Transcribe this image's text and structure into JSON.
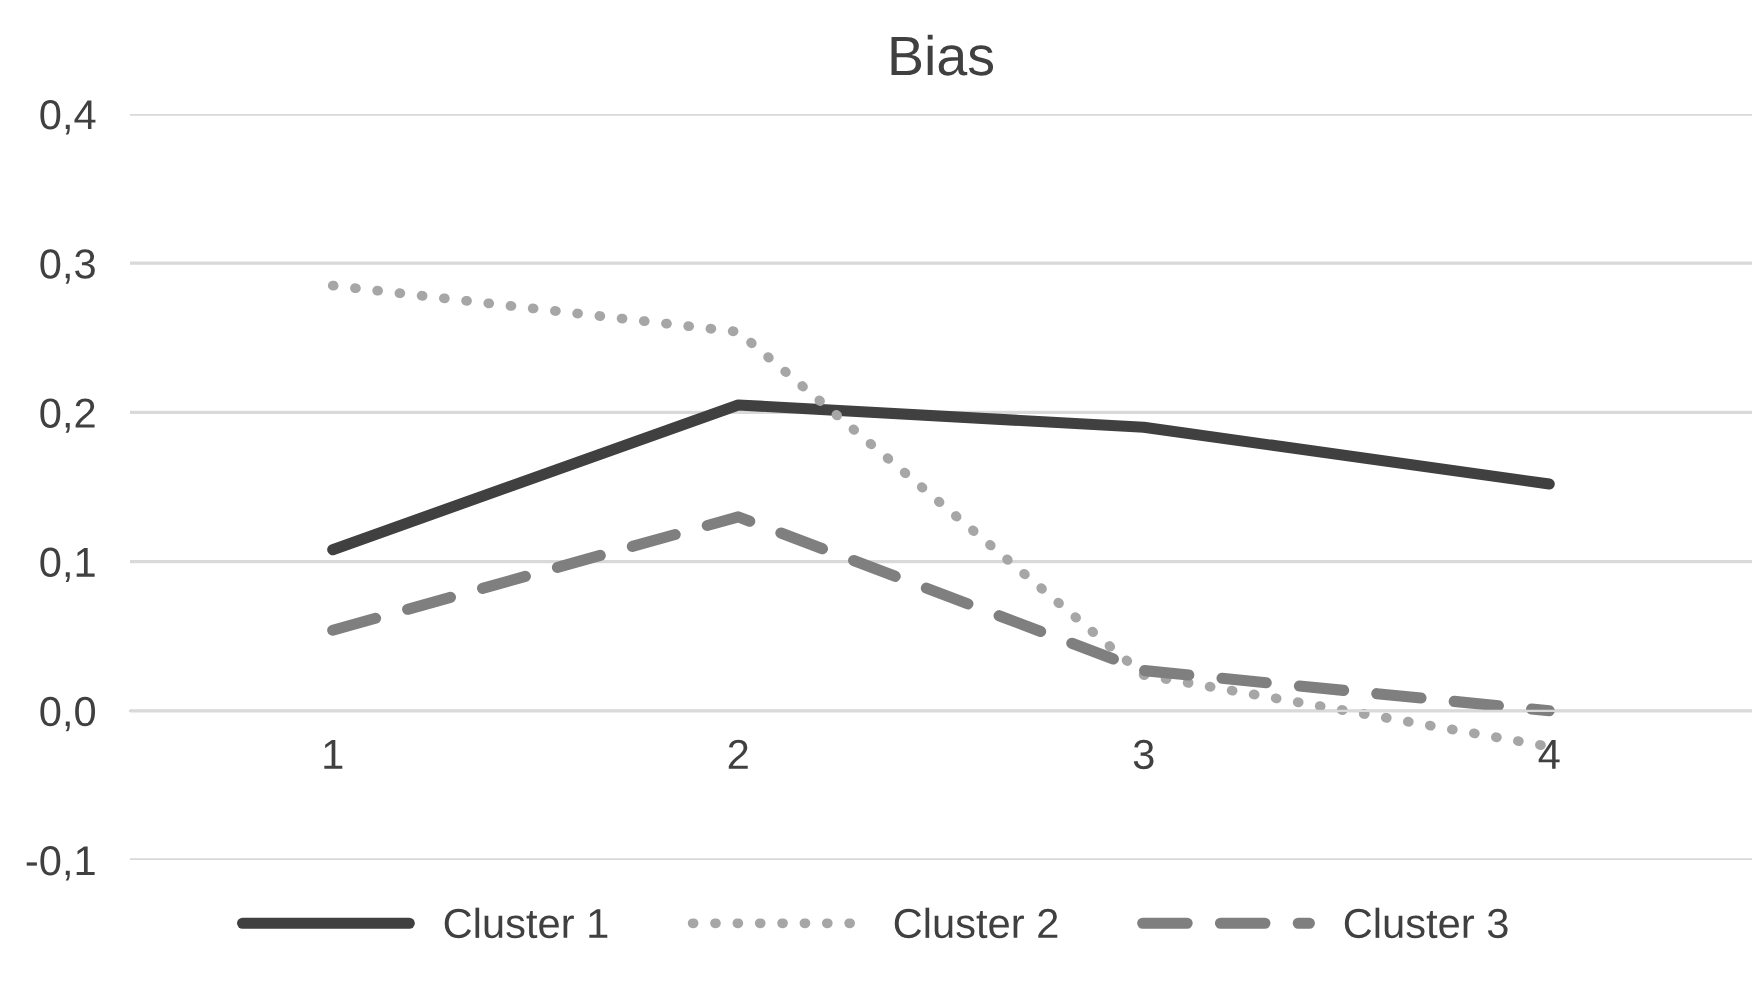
{
  "chart_data": {
    "type": "line",
    "title": "Bias",
    "categories": [
      "1",
      "2",
      "3",
      "4"
    ],
    "series": [
      {
        "name": "Cluster 1",
        "color": "#404040",
        "line_style": "solid",
        "values": [
          0.108,
          0.205,
          0.19,
          0.152
        ]
      },
      {
        "name": "Cluster 2",
        "color": "#a6a6a6",
        "line_style": "dotted",
        "values": [
          0.285,
          0.254,
          0.024,
          -0.024
        ]
      },
      {
        "name": "Cluster 3",
        "color": "#7f7f7f",
        "line_style": "dashed",
        "values": [
          0.054,
          0.13,
          0.027,
          0.0
        ]
      }
    ],
    "ylim": [
      -0.1,
      0.4
    ],
    "yticks": [
      {
        "value": -0.1,
        "label": "-0,1"
      },
      {
        "value": 0.0,
        "label": "0,0"
      },
      {
        "value": 0.1,
        "label": "0,1"
      },
      {
        "value": 0.2,
        "label": "0,2"
      },
      {
        "value": 0.3,
        "label": "0,3"
      },
      {
        "value": 0.4,
        "label": "0,4"
      }
    ],
    "grid": "y",
    "legend": "bottom",
    "marker": "none"
  }
}
